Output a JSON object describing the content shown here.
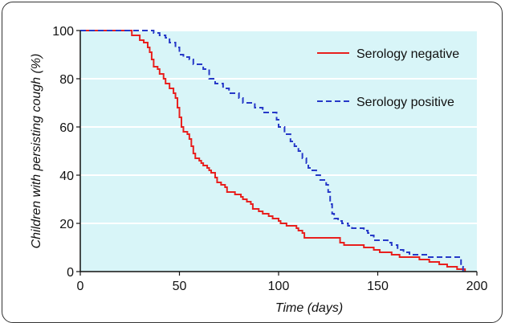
{
  "chart_data": {
    "type": "line",
    "step": true,
    "xlabel": "Time (days)",
    "ylabel": "Children with persisting cough (%)",
    "xlim": [
      0,
      200
    ],
    "ylim": [
      0,
      100
    ],
    "xticks": [
      "0",
      "50",
      "100",
      "150",
      "200"
    ],
    "yticks": [
      "0",
      "20",
      "40",
      "60",
      "80",
      "100"
    ],
    "background_color": "#d8f5f8",
    "grid": "horizontal",
    "legend_position": "top-right",
    "series": [
      {
        "name": "Serology negative",
        "color": "#e8201e",
        "line_style": "solid",
        "points": [
          [
            0,
            100
          ],
          [
            24,
            100
          ],
          [
            26,
            98
          ],
          [
            30,
            96
          ],
          [
            32,
            95
          ],
          [
            34,
            93
          ],
          [
            35,
            91
          ],
          [
            36,
            88
          ],
          [
            37,
            85
          ],
          [
            39,
            84
          ],
          [
            40,
            82
          ],
          [
            42,
            80
          ],
          [
            43,
            78
          ],
          [
            45,
            76
          ],
          [
            47,
            74
          ],
          [
            48,
            72
          ],
          [
            49,
            68
          ],
          [
            50,
            64
          ],
          [
            51,
            60
          ],
          [
            52,
            58
          ],
          [
            54,
            57
          ],
          [
            55,
            55
          ],
          [
            56,
            52
          ],
          [
            57,
            49
          ],
          [
            58,
            47
          ],
          [
            60,
            46
          ],
          [
            61,
            45
          ],
          [
            62,
            44
          ],
          [
            64,
            43
          ],
          [
            65,
            42
          ],
          [
            66,
            41
          ],
          [
            68,
            39
          ],
          [
            69,
            37
          ],
          [
            71,
            36
          ],
          [
            73,
            35
          ],
          [
            74,
            33
          ],
          [
            76,
            33
          ],
          [
            78,
            32
          ],
          [
            81,
            31
          ],
          [
            82,
            30
          ],
          [
            84,
            29
          ],
          [
            86,
            28
          ],
          [
            87,
            26
          ],
          [
            90,
            25
          ],
          [
            92,
            24
          ],
          [
            95,
            23
          ],
          [
            97,
            22
          ],
          [
            100,
            21
          ],
          [
            101,
            20
          ],
          [
            104,
            19
          ],
          [
            108,
            19
          ],
          [
            109,
            18
          ],
          [
            110,
            17
          ],
          [
            112,
            16
          ],
          [
            113,
            14
          ],
          [
            118,
            14
          ],
          [
            128,
            14
          ],
          [
            131,
            12
          ],
          [
            133,
            11
          ],
          [
            142,
            11
          ],
          [
            143,
            10
          ],
          [
            148,
            9
          ],
          [
            151,
            8
          ],
          [
            155,
            8
          ],
          [
            157,
            7
          ],
          [
            160,
            7
          ],
          [
            161,
            6
          ],
          [
            170,
            6
          ],
          [
            171,
            5
          ],
          [
            174,
            5
          ],
          [
            176,
            4
          ],
          [
            181,
            3
          ],
          [
            185,
            2
          ],
          [
            188,
            2
          ],
          [
            190,
            1
          ],
          [
            193,
            1
          ],
          [
            194,
            0
          ]
        ]
      },
      {
        "name": "Serology positive",
        "color": "#2639c8",
        "line_style": "dashed",
        "points": [
          [
            0,
            100
          ],
          [
            35,
            100
          ],
          [
            37,
            99
          ],
          [
            40,
            98
          ],
          [
            43,
            97
          ],
          [
            45,
            95
          ],
          [
            48,
            93
          ],
          [
            50,
            90
          ],
          [
            52,
            89
          ],
          [
            55,
            88
          ],
          [
            57,
            86
          ],
          [
            60,
            86
          ],
          [
            62,
            84
          ],
          [
            65,
            80
          ],
          [
            68,
            78
          ],
          [
            72,
            76
          ],
          [
            75,
            74
          ],
          [
            78,
            74
          ],
          [
            80,
            72
          ],
          [
            82,
            70
          ],
          [
            86,
            70
          ],
          [
            88,
            68
          ],
          [
            92,
            66
          ],
          [
            96,
            66
          ],
          [
            99,
            63
          ],
          [
            100,
            60
          ],
          [
            103,
            57
          ],
          [
            106,
            54
          ],
          [
            108,
            52
          ],
          [
            110,
            50
          ],
          [
            112,
            47
          ],
          [
            114,
            45
          ],
          [
            115,
            43
          ],
          [
            117,
            42
          ],
          [
            119,
            40
          ],
          [
            121,
            38
          ],
          [
            124,
            36
          ],
          [
            125,
            33
          ],
          [
            126,
            28
          ],
          [
            127,
            24
          ],
          [
            128,
            22
          ],
          [
            130,
            21
          ],
          [
            132,
            20
          ],
          [
            135,
            19
          ],
          [
            137,
            18
          ],
          [
            143,
            17
          ],
          [
            145,
            16
          ],
          [
            146,
            15
          ],
          [
            148,
            13
          ],
          [
            154,
            13
          ],
          [
            155,
            12
          ],
          [
            157,
            11
          ],
          [
            160,
            9
          ],
          [
            163,
            8
          ],
          [
            166,
            7
          ],
          [
            169,
            7
          ],
          [
            175,
            6
          ],
          [
            178,
            6
          ],
          [
            180,
            6
          ],
          [
            185,
            6
          ],
          [
            190,
            6
          ],
          [
            192,
            2
          ],
          [
            193,
            0
          ]
        ]
      }
    ]
  }
}
